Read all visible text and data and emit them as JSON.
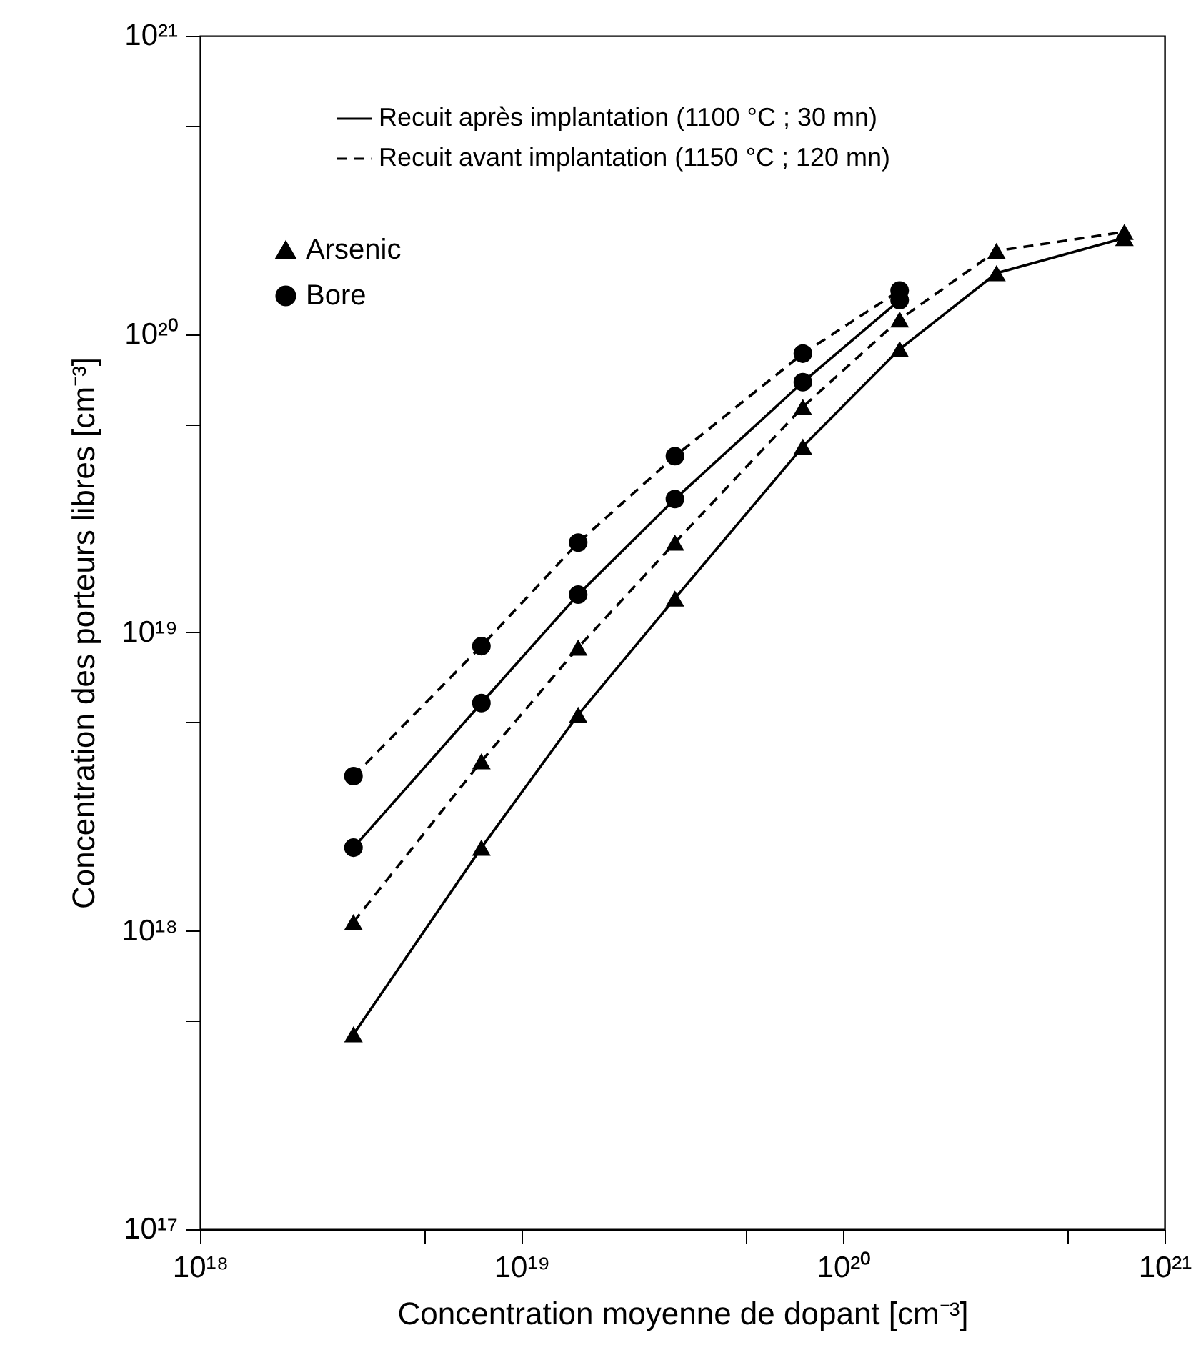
{
  "chart_data": {
    "type": "line",
    "xlabel": "Concentration moyenne de dopant  [cm⁻³]",
    "ylabel": "Concentration des porteurs libres  [cm⁻³]",
    "log": "xy",
    "x": [
      3e+18,
      7.5e+18,
      1.5e+19,
      3e+19,
      7.5e+19,
      1.5e+20,
      3e+20,
      7.5e+20
    ],
    "series": [
      {
        "name": "Arsenic",
        "color": "#000000",
        "marker": "triangle",
        "line_style": "solid",
        "values": [
          4.5e+17,
          1.9e+18,
          5.3e+18,
          1.3e+19,
          4.2e+19,
          8.9e+19,
          1.6e+20,
          2.1e+20
        ]
      },
      {
        "color": "#000000",
        "marker": "triangle",
        "line_style": "dashed",
        "values": [
          1.07e+18,
          3.7e+18,
          8.9e+18,
          2e+19,
          5.7e+19,
          1.12e+20,
          1.9e+20,
          2.2e+20
        ]
      },
      {
        "name": "Bore",
        "color": "#000000",
        "marker": "circle",
        "line_style": "solid",
        "x": [
          3e+18,
          7.5e+18,
          1.5e+19,
          3e+19,
          7.5e+19,
          1.5e+20
        ],
        "values": [
          1.9e+18,
          5.8e+18,
          1.34e+19,
          2.8e+19,
          6.9e+19,
          1.3e+20
        ]
      },
      {
        "color": "#000000",
        "marker": "circle",
        "line_style": "dashed",
        "x": [
          3e+18,
          7.5e+18,
          1.5e+19,
          3e+19,
          7.5e+19,
          1.5e+20
        ],
        "values": [
          3.3e+18,
          9e+18,
          2e+19,
          3.9e+19,
          8.6e+19,
          1.4e+20
        ]
      }
    ],
    "annotations": [
      "Recuit après implantation (1100 °C ; 30 mn)",
      "Recuit avant implantation (1150 °C ; 120 mn)"
    ],
    "legend": "top left",
    "grid": false,
    "xlim": [
      1e+18,
      1e+21
    ],
    "ylim": [
      1e+17,
      1e+21
    ],
    "xticks": [
      {
        "value": 1e+18,
        "label": "10¹⁸"
      },
      {
        "value": 5e+18,
        "label": null
      },
      {
        "value": 1e+19,
        "label": "10¹⁹"
      },
      {
        "value": 5e+19,
        "label": null
      },
      {
        "value": 1e+20,
        "label": "10²⁰"
      },
      {
        "value": 5e+20,
        "label": null
      },
      {
        "value": 1e+21,
        "label": "10²¹"
      }
    ],
    "yticks": [
      {
        "value": 1e+17,
        "label": "10¹⁷"
      },
      {
        "value": 5e+17,
        "label": null
      },
      {
        "value": 1e+18,
        "label": "10¹⁸"
      },
      {
        "value": 5e+18,
        "label": null
      },
      {
        "value": 1e+19,
        "label": "10¹⁹"
      },
      {
        "value": 5e+19,
        "label": null
      },
      {
        "value": 1e+20,
        "label": "10²⁰"
      },
      {
        "value": 5e+20,
        "label": null
      },
      {
        "value": 1e+21,
        "label": "10²¹"
      }
    ]
  }
}
